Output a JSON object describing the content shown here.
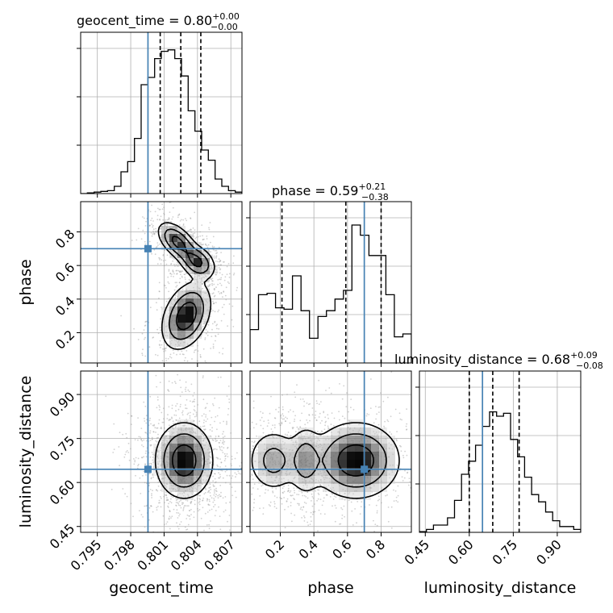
{
  "chart_data": {
    "type": "corner",
    "parameters": [
      "geocent_time",
      "phase",
      "luminosity_distance"
    ],
    "truth": {
      "geocent_time": 0.79955,
      "phase": 0.7,
      "luminosity_distance": 0.645
    },
    "colors": {
      "truth": "#4682b4",
      "hist": "#000000",
      "scatter": "#9a9a9a",
      "grid": "#b0b0b0"
    },
    "grid": true,
    "titles": [
      {
        "param": "geocent_time",
        "text": "geocent_time = 0.80",
        "plus": "+0.00",
        "minus": "−0.00"
      },
      {
        "param": "phase",
        "text": "phase = 0.59",
        "plus": "+0.21",
        "minus": "−0.38"
      },
      {
        "param": "luminosity_distance",
        "text": "luminosity_distance = 0.68",
        "plus": "+0.09",
        "minus": "−0.08"
      }
    ],
    "axis_labels": {
      "x": [
        "geocent_time",
        "phase",
        "luminosity_distance"
      ],
      "y": [
        "phase",
        "luminosity_distance"
      ]
    },
    "ranges": {
      "geocent_time": [
        0.7935,
        0.808
      ],
      "phase": [
        0.02,
        0.98
      ],
      "luminosity_distance": [
        0.43,
        0.98
      ]
    },
    "ticks": {
      "geocent_time": {
        "values": [
          0.795,
          0.798,
          0.801,
          0.804,
          0.807
        ],
        "labels": [
          "0.795",
          "0.798",
          "0.801",
          "0.804",
          "0.807"
        ]
      },
      "phase": {
        "values": [
          0.2,
          0.4,
          0.6,
          0.8
        ],
        "labels": [
          "0.2",
          "0.4",
          "0.6",
          "0.8"
        ]
      },
      "luminosity_distance": {
        "values": [
          0.45,
          0.6,
          0.75,
          0.9
        ],
        "labels": [
          "0.45",
          "0.60",
          "0.75",
          "0.90"
        ]
      }
    },
    "quantiles": {
      "geocent_time": [
        0.80065,
        0.8025,
        0.8043
      ],
      "phase": [
        0.21,
        0.59,
        0.8
      ],
      "luminosity_distance": [
        0.6,
        0.68,
        0.77
      ]
    },
    "histograms": {
      "geocent_time": [
        0,
        0.005,
        0.01,
        0.015,
        0.02,
        0.05,
        0.15,
        0.22,
        0.38,
        0.75,
        0.8,
        0.93,
        0.98,
        0.99,
        0.93,
        0.81,
        0.57,
        0.43,
        0.3,
        0.23,
        0.1,
        0.05,
        0.02,
        0.01
      ],
      "phase": [
        0.23,
        0.47,
        0.48,
        0.38,
        0.37,
        0.6,
        0.36,
        0.17,
        0.32,
        0.36,
        0.44,
        0.5,
        0.95,
        0.88,
        0.74,
        0.74,
        0.47,
        0.18,
        0.2
      ],
      "luminosity_distance": [
        0.005,
        0.02,
        0.05,
        0.05,
        0.1,
        0.22,
        0.4,
        0.49,
        0.6,
        0.73,
        0.83,
        0.8,
        0.82,
        0.64,
        0.52,
        0.38,
        0.26,
        0.21,
        0.14,
        0.08,
        0.04,
        0.04,
        0.02
      ]
    }
  }
}
